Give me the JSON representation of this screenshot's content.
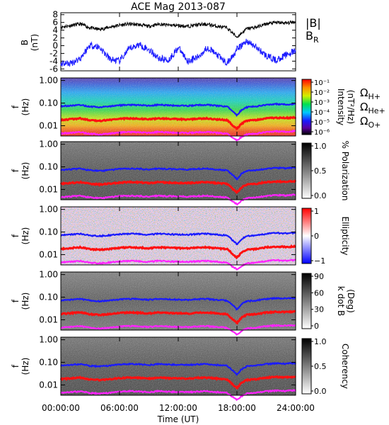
{
  "title": "ACE Mag 2013-087",
  "colors": {
    "black": "#000000",
    "blue": "#1a1aff",
    "red": "#ff1010",
    "magenta": "#ff22ff"
  },
  "chart_data": [
    {
      "type": "line",
      "panel": "field",
      "ylabel": "B (nT)",
      "ylim": [
        -6.5,
        8.5
      ],
      "yticks": [
        -6,
        -4,
        -2,
        0,
        2,
        4,
        6,
        8
      ],
      "series": [
        {
          "name": "|B|",
          "color": "#000000",
          "x": [
            0,
            1,
            2,
            3,
            4,
            5,
            6,
            7,
            8,
            9,
            10,
            11,
            12,
            13,
            14,
            15,
            16,
            17,
            18,
            19,
            20,
            21,
            22,
            23,
            24
          ],
          "y": [
            4.8,
            5.2,
            5.6,
            4.6,
            4.2,
            4.8,
            5.3,
            5.6,
            5.4,
            5.0,
            5.6,
            5.3,
            5.2,
            5.0,
            5.4,
            5.5,
            5.0,
            4.6,
            2.2,
            4.4,
            4.8,
            5.6,
            6.0,
            5.8,
            6.2
          ]
        },
        {
          "name": "B_R",
          "color": "#1a1aff",
          "x": [
            0,
            1,
            2,
            3,
            4,
            5,
            6,
            7,
            8,
            9,
            10,
            11,
            12,
            13,
            14,
            15,
            16,
            17,
            18,
            19,
            20,
            21,
            22,
            23,
            24
          ],
          "y": [
            -4.5,
            -4.6,
            -3.2,
            0.2,
            -0.5,
            -3.5,
            -4.0,
            -0.8,
            0.3,
            -1.0,
            -3.2,
            -3.8,
            -0.5,
            -4.0,
            -3.0,
            -0.4,
            -2.5,
            -4.6,
            -1.0,
            1.2,
            -0.5,
            -2.6,
            -3.8,
            -2.4,
            -1.4
          ]
        }
      ],
      "legend": [
        "|B|",
        "B_R"
      ]
    },
    {
      "type": "heatmap",
      "panel": "intensity",
      "ylabel": "f (Hz)",
      "yticks": [
        "1.00",
        "0.10",
        "0.01"
      ],
      "colorbar": {
        "label": "Intensity (nT²/Hz)",
        "ticks": [
          "10⁻¹",
          "10⁻²",
          "10⁻³",
          "10⁻⁴",
          "10⁻⁵",
          "10⁻⁶"
        ],
        "scale": "rainbow"
      },
      "legend": [
        "ΩH+",
        "ΩHe+",
        "ΩO+"
      ]
    },
    {
      "type": "heatmap",
      "panel": "polarization",
      "ylabel": "f (Hz)",
      "yticks": [
        "1.00",
        "0.10",
        "0.01"
      ],
      "colorbar": {
        "label": "% Polarization",
        "ticks": [
          "1.0",
          "0.5",
          "0.0"
        ],
        "scale": "gray"
      }
    },
    {
      "type": "heatmap",
      "panel": "ellipticity",
      "ylabel": "f (Hz)",
      "yticks": [
        "1.00",
        "0.10",
        "0.01"
      ],
      "colorbar": {
        "label": "Ellipticity",
        "ticks": [
          "1",
          "0",
          "−1"
        ],
        "scale": "bwr"
      }
    },
    {
      "type": "heatmap",
      "panel": "kdotb",
      "ylabel": "f (Hz)",
      "yticks": [
        "1.00",
        "0.10",
        "0.01"
      ],
      "colorbar": {
        "label": "k dot B (Deg)",
        "ticks": [
          "90",
          "60",
          "30",
          "0"
        ],
        "scale": "gray"
      }
    },
    {
      "type": "heatmap",
      "panel": "coherency",
      "ylabel": "f (Hz)",
      "yticks": [
        "1.00",
        "0.10",
        "0.01"
      ],
      "colorbar": {
        "label": "Coherency",
        "ticks": [
          "1.0",
          "0.5",
          "0.0"
        ],
        "scale": "gray"
      }
    }
  ],
  "gyrofrequency_lines": {
    "x": [
      0,
      1,
      2,
      3,
      4,
      5,
      6,
      7,
      8,
      9,
      10,
      11,
      12,
      13,
      14,
      15,
      16,
      17,
      17.5,
      18,
      18.5,
      19,
      20,
      21,
      22,
      23,
      24
    ],
    "h_plus": [
      0.072,
      0.078,
      0.083,
      0.07,
      0.066,
      0.072,
      0.08,
      0.084,
      0.082,
      0.076,
      0.084,
      0.08,
      0.078,
      0.076,
      0.082,
      0.083,
      0.076,
      0.07,
      0.045,
      0.028,
      0.05,
      0.066,
      0.072,
      0.083,
      0.09,
      0.087,
      0.092
    ],
    "he_plus": [
      0.018,
      0.0195,
      0.021,
      0.0175,
      0.0165,
      0.018,
      0.02,
      0.021,
      0.0205,
      0.019,
      0.021,
      0.02,
      0.0195,
      0.019,
      0.0205,
      0.021,
      0.019,
      0.0175,
      0.011,
      0.007,
      0.0125,
      0.0165,
      0.018,
      0.021,
      0.0225,
      0.022,
      0.023
    ],
    "o_plus": [
      0.0045,
      0.0049,
      0.0052,
      0.0044,
      0.0041,
      0.0045,
      0.005,
      0.0053,
      0.0051,
      0.0048,
      0.0053,
      0.005,
      0.0049,
      0.0048,
      0.0051,
      0.0052,
      0.0048,
      0.0044,
      0.003,
      0.0022,
      0.0032,
      0.0041,
      0.0045,
      0.0052,
      0.0056,
      0.0054,
      0.0058
    ]
  },
  "x_axis": {
    "label": "Time (UT)",
    "range": [
      0,
      24
    ],
    "ticks": [
      0,
      6,
      12,
      18,
      24
    ],
    "tick_labels": [
      "00:00:00",
      "06:00:00",
      "12:00:00",
      "18:00:00",
      "24:00:00"
    ]
  },
  "labels": {
    "b_axis": "B",
    "b_units": "(nT)",
    "f_axis": "f",
    "f_units": "(Hz)",
    "legend_b": "|B|",
    "legend_br_main": "B",
    "legend_br_sub": "R",
    "omega": "Ω",
    "hplus": "H+",
    "heplus": "He+",
    "oplus": "O+"
  }
}
